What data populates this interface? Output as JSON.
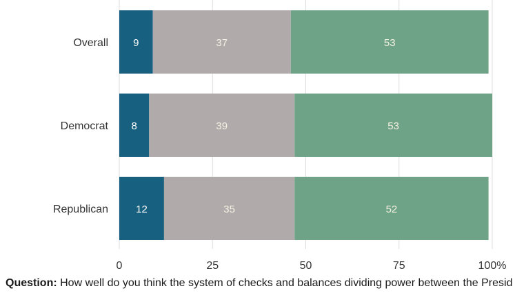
{
  "chart_data": {
    "type": "bar",
    "orientation": "horizontal",
    "stacked": true,
    "categories": [
      "Overall",
      "Democrat",
      "Republican"
    ],
    "series": [
      {
        "values": [
          9,
          8,
          12
        ],
        "color": "#17607f",
        "label_color": "#ffffff"
      },
      {
        "values": [
          37,
          39,
          35
        ],
        "color": "#b0abaa",
        "label_color": "#f4f1e4"
      },
      {
        "values": [
          53,
          53,
          52
        ],
        "color": "#6fa387",
        "label_color": "#f4f1e4"
      }
    ],
    "xlim": [
      0,
      100
    ],
    "xticks": [
      0,
      25,
      50,
      75,
      100
    ],
    "xtick_labels": [
      "0",
      "25",
      "50",
      "75",
      "100%"
    ],
    "grid": true,
    "gridline_color": "#dddddd"
  },
  "question": {
    "label": "Question:",
    "text": "How well do you think the system of checks and balances dividing power between the President, Congress and the courts is working in the United States these days?"
  }
}
